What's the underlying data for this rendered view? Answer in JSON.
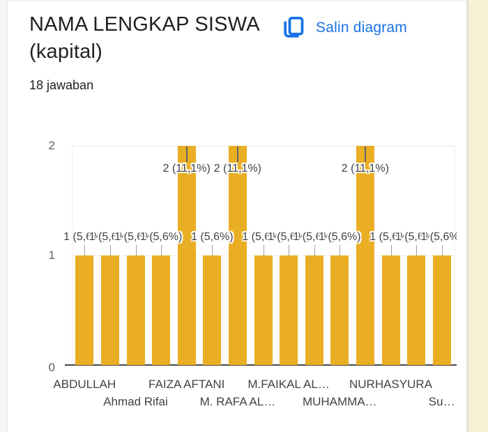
{
  "header": {
    "title": "NAMA LENGKAP SISWA (kapital)",
    "answers_count": "18 jawaban",
    "copy_button_label": "Salin diagram",
    "accent_color": "#1a73e8"
  },
  "chart_data": {
    "type": "bar",
    "title": "NAMA LENGKAP SISWA (kapital)",
    "subtitle": "18 jawaban",
    "total_responses": 18,
    "bar_color": "#e9ae23",
    "ylim": [
      0,
      2
    ],
    "y_ticks": [
      "0",
      "1",
      "2"
    ],
    "grid": true,
    "legend": "none",
    "bars": [
      {
        "value": 1,
        "annotation": "1 (5,6%)",
        "tick_label": "ABDULLAH",
        "tick_row": 1
      },
      {
        "value": 1,
        "annotation": "1 (5,6%)"
      },
      {
        "value": 1,
        "annotation": "1 (5,6%)",
        "tick_label": "Ahmad Rifai",
        "tick_row": 2
      },
      {
        "value": 1,
        "annotation": "1 (5,6%)"
      },
      {
        "value": 2,
        "annotation": "2 (11,1%)",
        "tick_label": "FAIZA AFTANI",
        "tick_row": 1
      },
      {
        "value": 1,
        "annotation": "1 (5,6%)"
      },
      {
        "value": 2,
        "annotation": "2 (11,1%)",
        "tick_label": "M. RAFA AL…",
        "tick_row": 2
      },
      {
        "value": 1,
        "annotation": "1 (5,6%)"
      },
      {
        "value": 1,
        "annotation": "1 (5,6%)",
        "tick_label": "M.FAIKAL AL…",
        "tick_row": 1
      },
      {
        "value": 1,
        "annotation": "1 (5,6%)"
      },
      {
        "value": 1,
        "annotation": "1 (5,6%)",
        "tick_label": "MUHAMMA…",
        "tick_row": 2
      },
      {
        "value": 2,
        "annotation": "2 (11,1%)"
      },
      {
        "value": 1,
        "annotation": "1 (5,6%)",
        "tick_label": "NURHASYURA",
        "tick_row": 1
      },
      {
        "value": 1,
        "annotation": "1 (5,6%)"
      },
      {
        "value": 1,
        "annotation": "1 (5,6%)",
        "tick_label": "Su…",
        "tick_row": 2
      }
    ]
  }
}
